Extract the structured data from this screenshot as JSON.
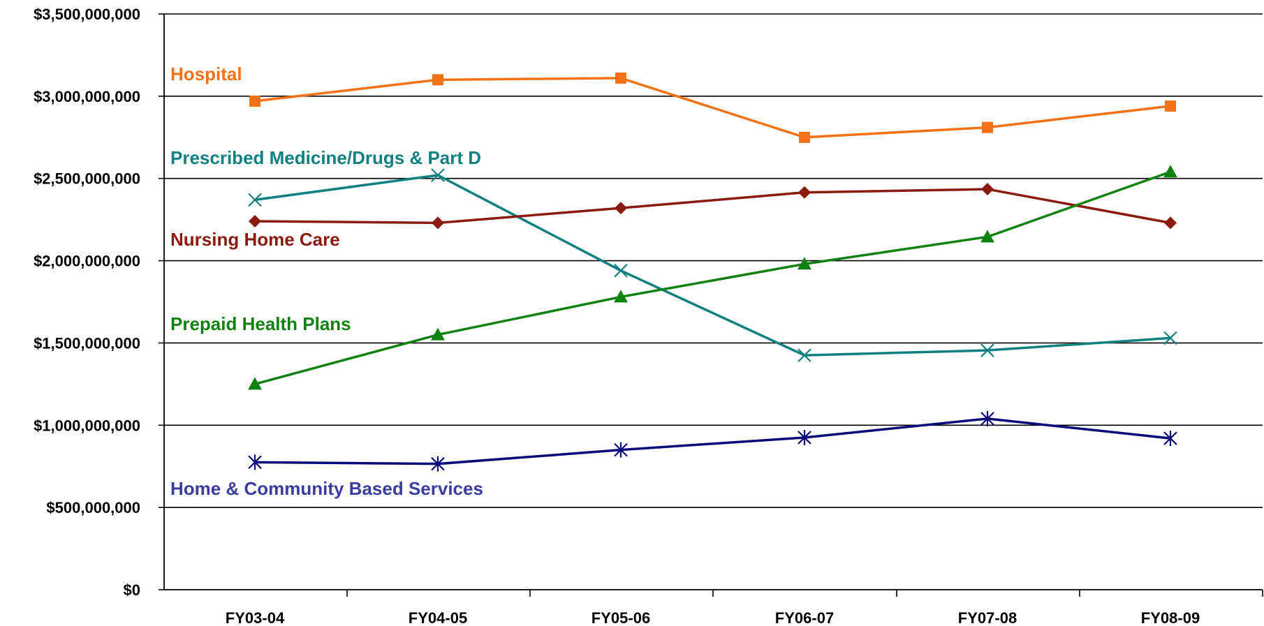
{
  "chart_data": {
    "type": "line",
    "title": "",
    "xlabel": "",
    "ylabel": "",
    "categories": [
      "FY03-04",
      "FY04-05",
      "FY05-06",
      "FY06-07",
      "FY07-08",
      "FY08-09"
    ],
    "ylim": [
      0,
      3500000000
    ],
    "y_ticks": [
      0,
      500000000,
      1000000000,
      1500000000,
      2000000000,
      2500000000,
      3000000000,
      3500000000
    ],
    "y_tick_labels": [
      "$0",
      "$500,000,000",
      "$1,000,000,000",
      "$1,500,000,000",
      "$2,000,000,000",
      "$2,500,000,000",
      "$3,000,000,000",
      "$3,500,000,000"
    ],
    "grid": true,
    "legend": "inline labels",
    "series": [
      {
        "name": "Hospital",
        "color": "#f47216",
        "marker": "square",
        "values": [
          2970000000,
          3100000000,
          3110000000,
          2750000000,
          2810000000,
          2940000000
        ]
      },
      {
        "name": "Prescribed Medicine/Drugs & Part D",
        "color": "#118080",
        "marker": "x",
        "values": [
          2370000000,
          2520000000,
          1940000000,
          1425000000,
          1455000000,
          1530000000
        ]
      },
      {
        "name": "Nursing Home Care",
        "color": "#8b1a10",
        "marker": "diamond",
        "values": [
          2240000000,
          2230000000,
          2320000000,
          2415000000,
          2435000000,
          2230000000
        ]
      },
      {
        "name": "Prepaid Health Plans",
        "color": "#118111",
        "marker": "triangle",
        "values": [
          1250000000,
          1550000000,
          1780000000,
          1980000000,
          2145000000,
          2540000000
        ]
      },
      {
        "name": "Home & Community Based Services",
        "color": "#0a0a7a",
        "marker": "asterisk",
        "values": [
          775000000,
          765000000,
          850000000,
          925000000,
          1040000000,
          920000000
        ]
      }
    ]
  },
  "series_label_colors": {
    "Home & Community Based Services": "#3c3c9e"
  }
}
